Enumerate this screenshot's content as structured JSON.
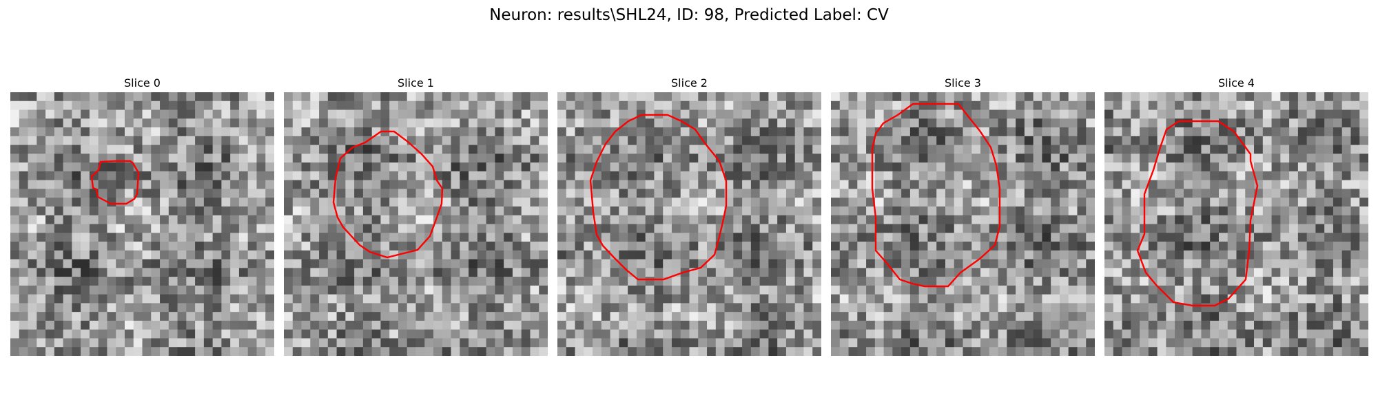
{
  "figure": {
    "title": "Neuron: results\\SHL24, ID: 98, Predicted Label: CV"
  },
  "panels": [
    {
      "title": "Slice 0"
    },
    {
      "title": "Slice 1"
    },
    {
      "title": "Slice 2"
    },
    {
      "title": "Slice 3"
    },
    {
      "title": "Slice 4"
    }
  ],
  "colors": {
    "contour": "#ff0000",
    "background": "#ffffff"
  }
}
